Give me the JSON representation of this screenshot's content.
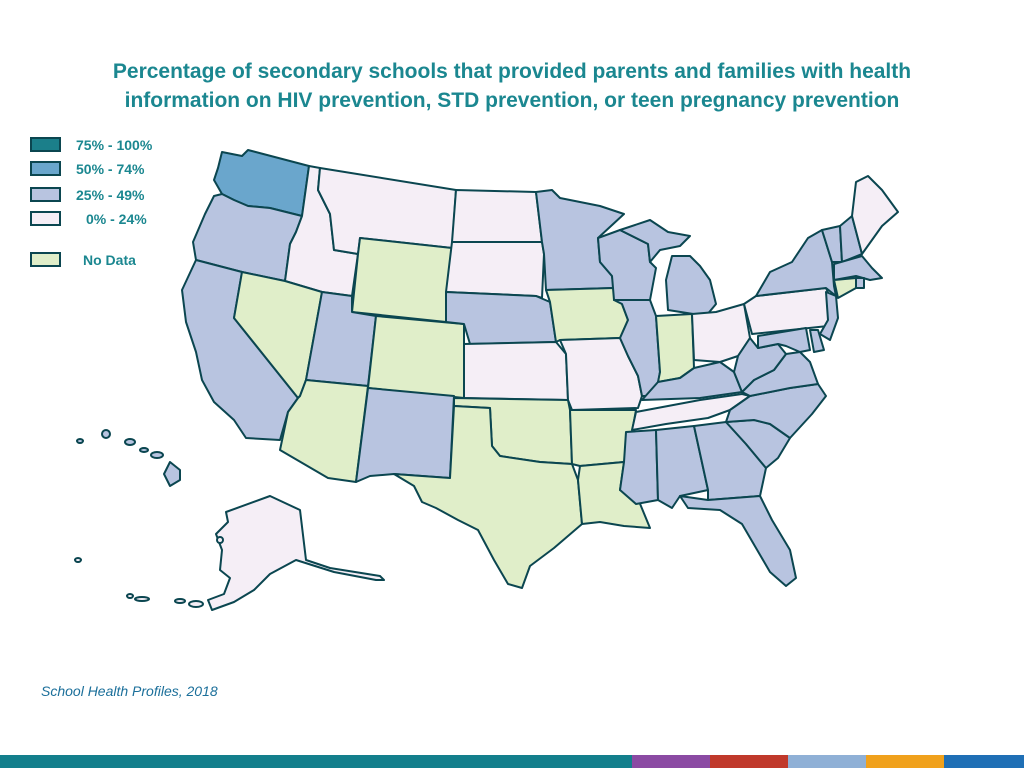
{
  "title": {
    "line1": "Percentage of secondary schools that provided parents and families with health",
    "line2": "information on HIV prevention, STD prevention, or teen pregnancy prevention"
  },
  "legend": [
    {
      "label": "75% - 100%",
      "color": "#1b7f8a"
    },
    {
      "label": "50% - 74%",
      "color": "#6aa6cc"
    },
    {
      "label": "25% - 49%",
      "color": "#b8c4e0"
    },
    {
      "label": "0% - 24%",
      "color": "#f5eef6"
    },
    {
      "label": "No Data",
      "color": "#e0eec9"
    }
  ],
  "source": "School Health Profiles, 2018",
  "map_data": {
    "type": "choropleth",
    "category_colors": {
      "75-100": "#1b7f8a",
      "50-74": "#6aa6cc",
      "25-49": "#b8c4e0",
      "0-24": "#f5eef6",
      "no-data": "#e0eec9"
    },
    "states": {
      "WA": "50-74",
      "OR": "25-49",
      "CA": "25-49",
      "ID": "0-24",
      "NV": "no-data",
      "MT": "0-24",
      "WY": "no-data",
      "UT": "25-49",
      "AZ": "no-data",
      "CO": "no-data",
      "NM": "25-49",
      "ND": "0-24",
      "SD": "0-24",
      "NE": "25-49",
      "KS": "0-24",
      "OK": "no-data",
      "TX": "no-data",
      "MN": "25-49",
      "IA": "no-data",
      "MO": "0-24",
      "AR": "no-data",
      "LA": "no-data",
      "WI": "25-49",
      "IL": "25-49",
      "MI": "25-49",
      "IN": "no-data",
      "OH": "0-24",
      "KY": "25-49",
      "TN": "0-24",
      "MS": "25-49",
      "AL": "25-49",
      "GA": "25-49",
      "FL": "25-49",
      "SC": "25-49",
      "NC": "25-49",
      "VA": "25-49",
      "WV": "25-49",
      "PA": "0-24",
      "NY": "25-49",
      "VT": "25-49",
      "NH": "25-49",
      "ME": "0-24",
      "MA": "25-49",
      "RI": "25-49",
      "CT": "no-data",
      "NJ": "25-49",
      "DE": "25-49",
      "MD": "25-49",
      "AK": "0-24",
      "HI": "25-49"
    }
  },
  "footer_colors": [
    "#137f8c",
    "#8b4aa3",
    "#c0392b",
    "#8fb0d6",
    "#f0a11c",
    "#1f6fb5"
  ]
}
